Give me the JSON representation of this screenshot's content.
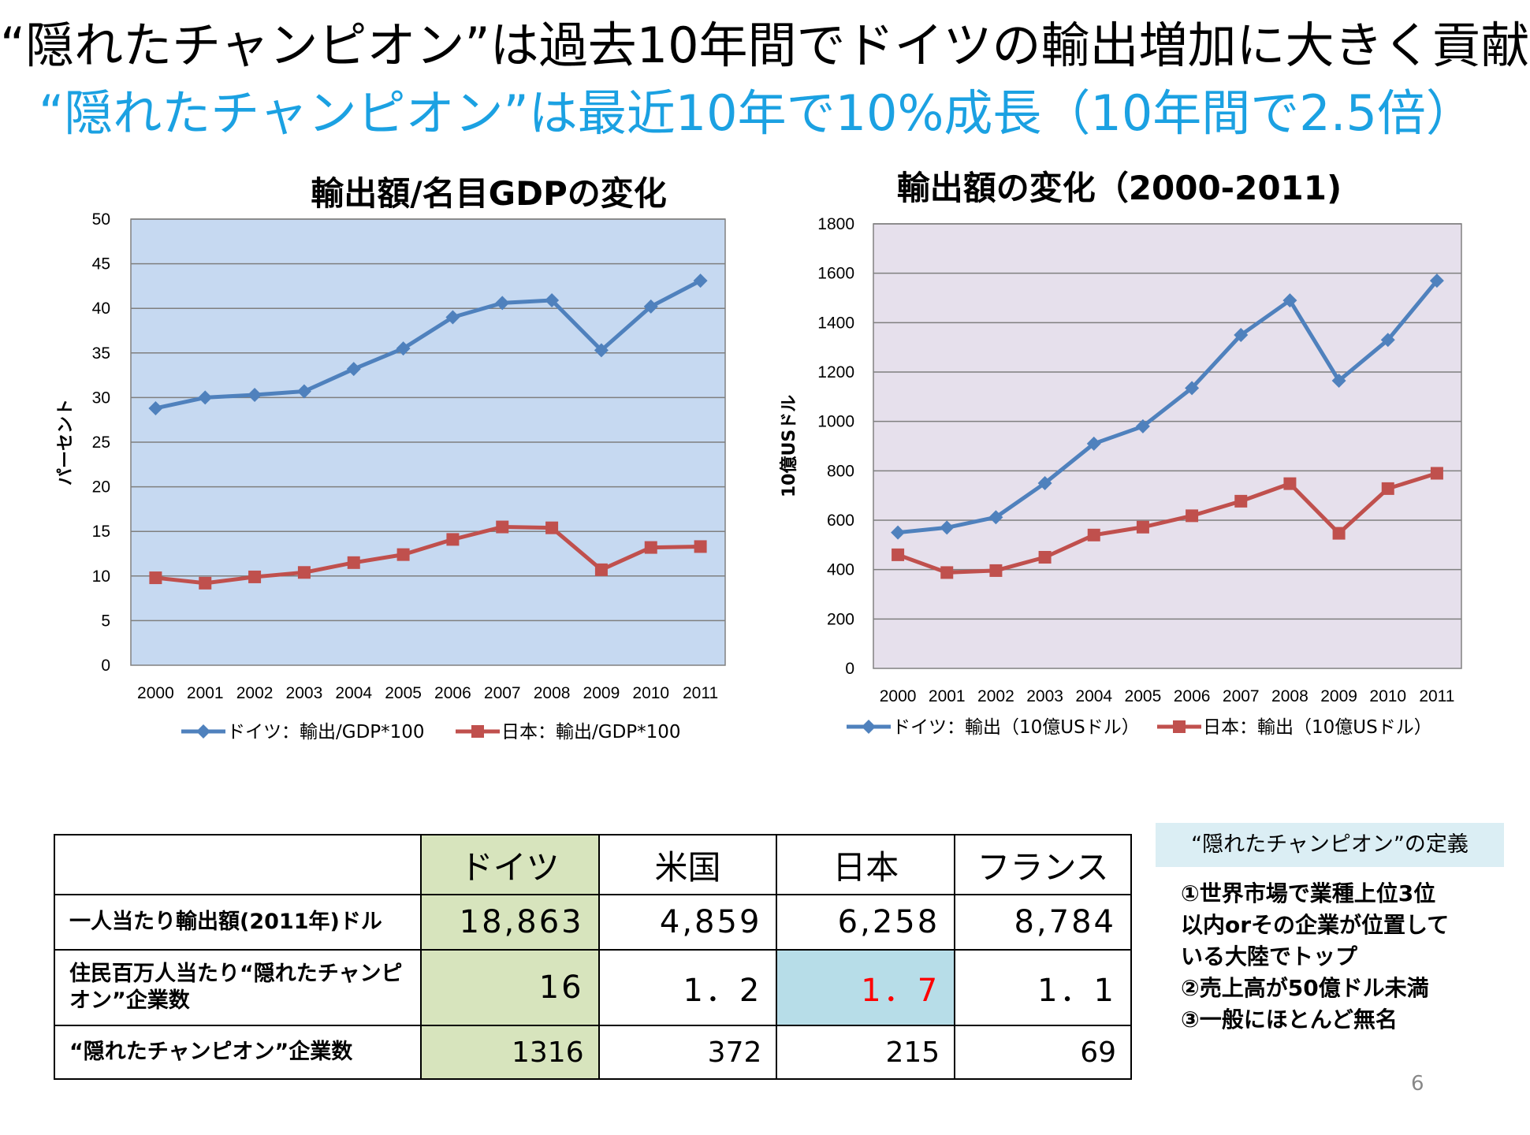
{
  "header": {
    "title": "“隠れたチャンピオン”は過去10年間でドイツの輸出増加に大きく貢献",
    "subtitle": "“隠れたチャンピオン”は最近10年で10%成長（10年間で2.5倍）"
  },
  "chart_data": [
    {
      "type": "line",
      "title": "輸出額/名目GDPの変化",
      "ylabel": "パーセント",
      "xlabel": "",
      "x": [
        "2000",
        "2001",
        "2002",
        "2003",
        "2004",
        "2005",
        "2006",
        "2007",
        "2008",
        "2009",
        "2010",
        "2011"
      ],
      "ylim": [
        0,
        50
      ],
      "yticks": [
        "0",
        "5",
        "10",
        "15",
        "20",
        "25",
        "30",
        "35",
        "40",
        "45",
        "50"
      ],
      "grid": true,
      "legend_position": "bottom",
      "plot_bg": "#c6d9f1",
      "series": [
        {
          "name": "ドイツ：輸出/GDP*100",
          "color": "#4f81bd",
          "marker": "diamond",
          "values": [
            28.8,
            30.0,
            30.3,
            30.7,
            33.2,
            35.5,
            39.0,
            40.6,
            40.9,
            35.3,
            40.2,
            43.1
          ]
        },
        {
          "name": "日本：輸出/GDP*100",
          "color": "#c0504d",
          "marker": "square",
          "values": [
            9.8,
            9.2,
            9.9,
            10.4,
            11.5,
            12.4,
            14.1,
            15.5,
            15.4,
            10.7,
            13.2,
            13.3
          ]
        }
      ]
    },
    {
      "type": "line",
      "title": "輸出額の変化（2000-2011)",
      "ylabel": "10億USドル",
      "xlabel": "",
      "x": [
        "2000",
        "2001",
        "2002",
        "2003",
        "2004",
        "2005",
        "2006",
        "2007",
        "2008",
        "2009",
        "2010",
        "2011"
      ],
      "ylim": [
        0,
        1800
      ],
      "yticks": [
        "0",
        "200",
        "400",
        "600",
        "800",
        "1000",
        "1200",
        "1400",
        "1600",
        "1800"
      ],
      "grid": true,
      "legend_position": "bottom",
      "plot_bg": "#e6e0ec",
      "series": [
        {
          "name": "ドイツ：輸出（10億USドル）",
          "color": "#4f81bd",
          "marker": "diamond",
          "values": [
            550,
            570,
            612,
            750,
            910,
            980,
            1135,
            1350,
            1490,
            1165,
            1330,
            1570
          ]
        },
        {
          "name": "日本：輸出（10億USドル）",
          "color": "#c0504d",
          "marker": "square",
          "values": [
            460,
            388,
            396,
            450,
            540,
            572,
            618,
            677,
            748,
            547,
            728,
            790
          ]
        }
      ]
    }
  ],
  "table": {
    "headers": [
      "",
      "ドイツ",
      "米国",
      "日本",
      "フランス"
    ],
    "rows": [
      {
        "label": "一人当たり輸出額(2011年)ドル",
        "values": [
          "18,863",
          "4,859",
          "6,258",
          "8,784"
        ]
      },
      {
        "label": "住民百万人当たり“隠れたチャンピオン”企業数",
        "values": [
          "16",
          "1．2",
          "1．7",
          "1．1"
        ]
      },
      {
        "label": "“隠れたチャンピオン”企業数",
        "values": [
          "1316",
          "372",
          "215",
          "69"
        ]
      }
    ],
    "highlight_colors": {
      "green": "#d7e4bd",
      "blue": "#b7dde8",
      "red_text": "#ff0000"
    }
  },
  "definition": {
    "title": "“隠れたチャンピオン”の定義",
    "items": [
      "①世界市場で業種上位3位",
      "以内orその企業が位置して",
      "いる大陸でトップ",
      "②売上高が50億ドル未満",
      "③一般にほとんど無名"
    ]
  },
  "page_number": "6"
}
